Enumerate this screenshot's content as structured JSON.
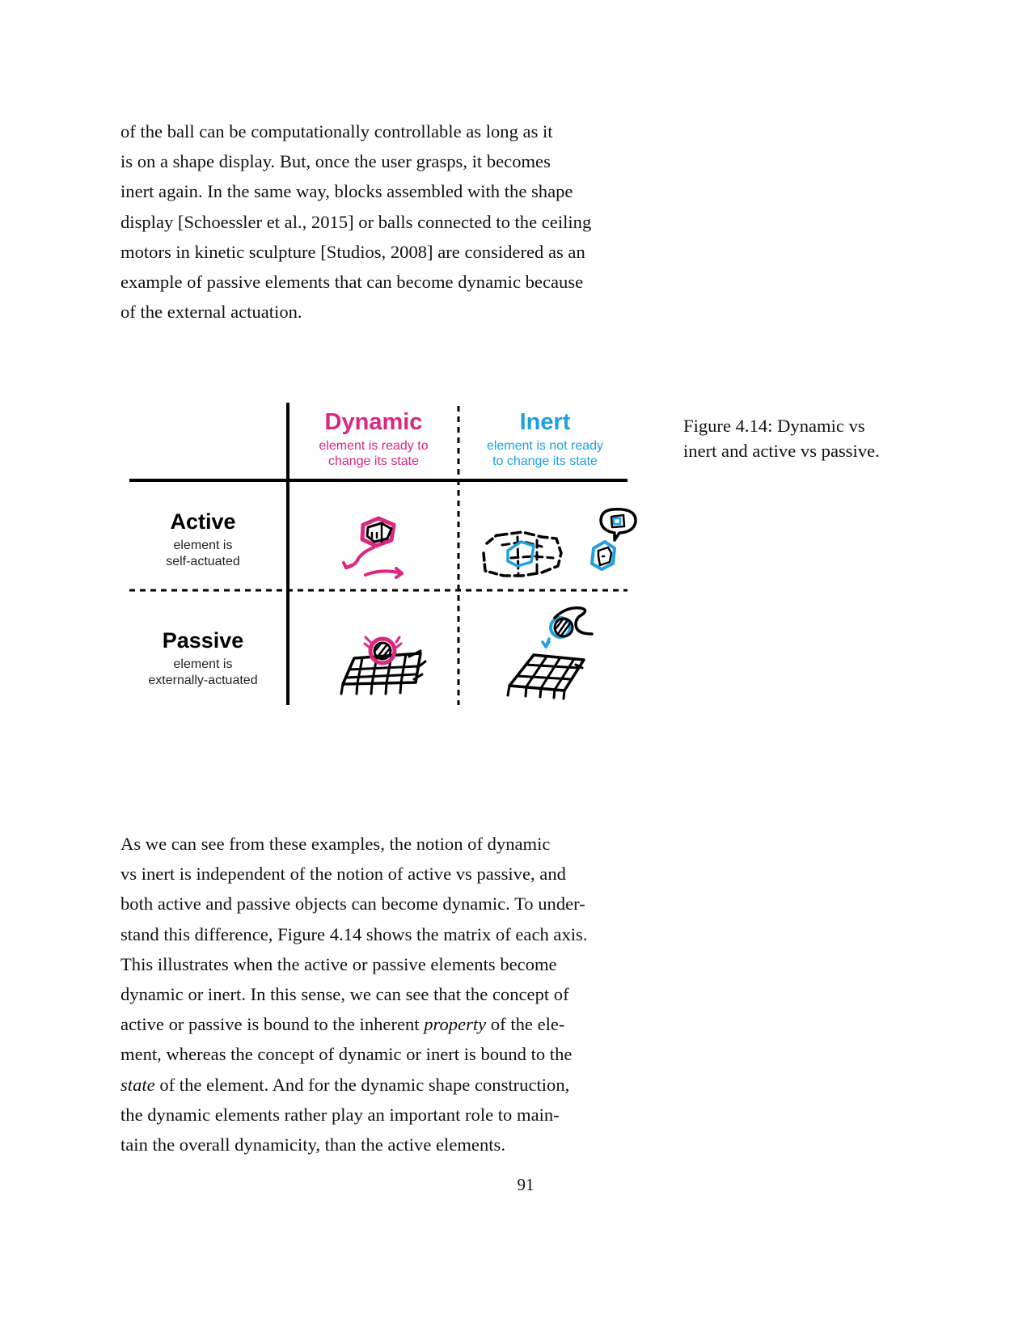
{
  "paragraph_top": {
    "lines": [
      "of the ball can be computationally controllable as long as it",
      "is on a shape display. But, once the user grasps, it becomes",
      "inert again. In the same way, blocks assembled with the shape",
      "display [Schoessler et al., 2015] or balls connected to the ceiling",
      "motors in kinetic sculpture [Studios, 2008] are considered as an",
      "example of passive elements that can become dynamic because",
      "of the external actuation."
    ]
  },
  "figure": {
    "columns": [
      {
        "title": "Dynamic",
        "line1": "element is ready to",
        "line2": "change its state",
        "color": "#d9287f"
      },
      {
        "title": "Inert",
        "line1": "element is not ready",
        "line2": "to change its state",
        "color": "#1ea0e0"
      }
    ],
    "rows": [
      {
        "title": "Active",
        "line1": "element is",
        "line2": "self-actuated"
      },
      {
        "title": "Passive",
        "line1": "element is",
        "line2": "externally-actuated"
      }
    ],
    "sketches": [
      "active-dynamic-cube-sketch",
      "active-inert-blocks-sketch",
      "passive-dynamic-ball-sketch",
      "passive-inert-grasp-sketch"
    ]
  },
  "caption": {
    "line1": "Figure 4.14: Dynamic vs",
    "line2": "inert and active vs passive."
  },
  "paragraph_bottom": {
    "l1": "As we can see from these examples, the notion of dynamic",
    "l2": "vs inert is independent of the notion of active vs passive, and",
    "l3": "both active and passive objects can become dynamic. To under-",
    "l4": "stand this difference, Figure 4.14 shows the matrix of each axis.",
    "l5": "This illustrates when the active or passive elements become",
    "l6": "dynamic or inert. In this sense, we can see that the concept of",
    "l7a": "active or passive is bound to the inherent ",
    "l7b": "property",
    "l7c": " of the ele-",
    "l8": "ment, whereas the concept of dynamic or inert is bound to the",
    "l9a": "state",
    "l9b": " of the element. And for the dynamic shape construction,",
    "l10": "the dynamic elements rather play an important role to main-",
    "l11": "tain the overall dynamicity, than the active elements."
  },
  "page_number": "91"
}
